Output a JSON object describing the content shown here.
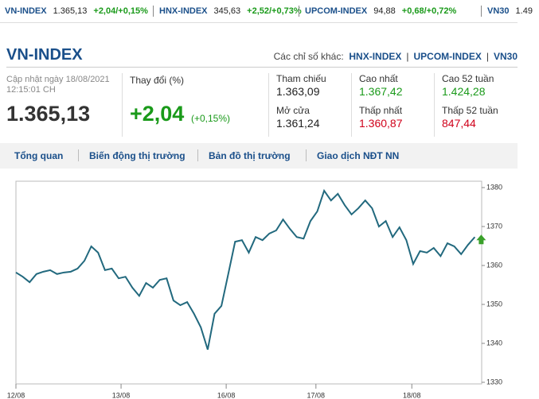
{
  "ticker": [
    {
      "name": "VN-INDEX",
      "value": "1.365,13",
      "change": "+2,04/+0,15%"
    },
    {
      "name": "HNX-INDEX",
      "value": "345,63",
      "change": "+2,52/+0,73%"
    },
    {
      "name": "UPCOM-INDEX",
      "value": "94,88",
      "change": "+0,68/+0,72%"
    },
    {
      "name": "VN30",
      "value": "1.49"
    }
  ],
  "header": {
    "title": "VN-INDEX",
    "other_label": "Các chỉ số khác:",
    "other_links": [
      "HNX-INDEX",
      "UPCOM-INDEX",
      "VN30"
    ]
  },
  "summary": {
    "updated": "Cập nhật ngày 18/08/2021",
    "time": "12:15:01 CH",
    "price": "1.365,13",
    "change_label": "Thay đổi (%)",
    "change": "+2,04",
    "change_pct": "(+0,15%)"
  },
  "stats": [
    {
      "label": "Tham chiếu",
      "value": "1.363,09",
      "color": "#222222"
    },
    {
      "label": "Cao nhất",
      "value": "1.367,42",
      "color": "#1a9a1a"
    },
    {
      "label": "Cao 52 tuần",
      "value": "1.424,28",
      "color": "#1a9a1a"
    },
    {
      "label": "Mở cửa",
      "value": "1.361,24",
      "color": "#222222"
    },
    {
      "label": "Thấp nhất",
      "value": "1.360,87",
      "color": "#d0021b"
    },
    {
      "label": "Thấp 52 tuần",
      "value": "847,44",
      "color": "#d0021b"
    }
  ],
  "tabs": [
    "Tổng quan",
    "Biến động thị trường",
    "Bản đồ thị trường",
    "Giao dịch NĐT NN"
  ],
  "chart_data": {
    "type": "line",
    "color": "#22697e",
    "values": [
      1358.2,
      1357.1,
      1355.7,
      1357.8,
      1358.4,
      1358.8,
      1357.8,
      1358.2,
      1358.4,
      1359.2,
      1361.2,
      1364.9,
      1363.3,
      1358.8,
      1359.2,
      1356.7,
      1357.1,
      1354.3,
      1352.2,
      1355.5,
      1354.3,
      1356.3,
      1356.7,
      1351.0,
      1349.8,
      1350.6,
      1347.6,
      1344.1,
      1338.4,
      1347.6,
      1349.6,
      1357.8,
      1366.1,
      1366.5,
      1363.3,
      1367.3,
      1366.5,
      1368.2,
      1369.0,
      1371.8,
      1369.4,
      1367.3,
      1366.9,
      1371.4,
      1373.9,
      1379.2,
      1376.7,
      1378.4,
      1375.5,
      1373.1,
      1374.7,
      1376.7,
      1374.7,
      1370.0,
      1371.4,
      1367.3,
      1369.8,
      1366.5,
      1360.4,
      1363.7,
      1363.3,
      1364.5,
      1362.4,
      1365.7,
      1364.9,
      1362.9,
      1365.3,
      1367.3
    ],
    "xlim": [
      0,
      68
    ],
    "xticks": [
      {
        "value": 0,
        "label": "12/08"
      },
      {
        "value": 15.35,
        "label": "13/08"
      },
      {
        "value": 30.7,
        "label": "16/08"
      },
      {
        "value": 43.8,
        "label": "17/08"
      },
      {
        "value": 57.8,
        "label": "18/08"
      }
    ],
    "ylim": [
      1330,
      1380
    ],
    "yticks": [
      1330,
      1340,
      1350,
      1360,
      1370,
      1380
    ]
  }
}
